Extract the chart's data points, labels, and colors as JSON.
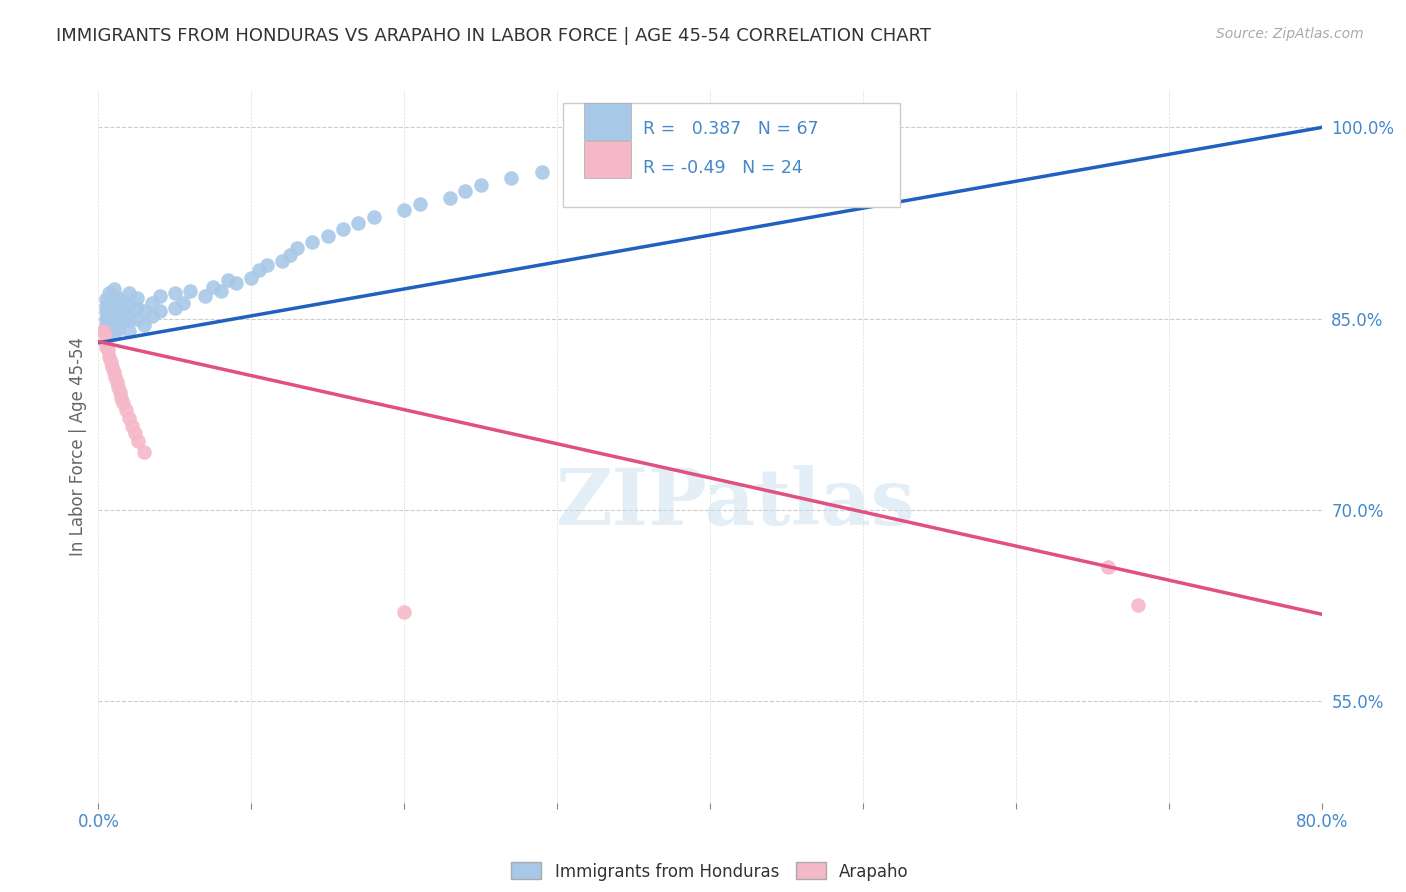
{
  "title": "IMMIGRANTS FROM HONDURAS VS ARAPAHO IN LABOR FORCE | AGE 45-54 CORRELATION CHART",
  "source": "Source: ZipAtlas.com",
  "ylabel": "In Labor Force | Age 45-54",
  "xlim": [
    0.0,
    0.8
  ],
  "ylim": [
    0.47,
    1.03
  ],
  "xtick_positions": [
    0.0,
    0.1,
    0.2,
    0.3,
    0.4,
    0.5,
    0.6,
    0.7,
    0.8
  ],
  "xtick_labels": [
    "0.0%",
    "",
    "",
    "",
    "",
    "",
    "",
    "",
    "80.0%"
  ],
  "yticks_right": [
    0.55,
    0.7,
    0.85,
    1.0
  ],
  "ytick_labels_right": [
    "55.0%",
    "70.0%",
    "85.0%",
    "100.0%"
  ],
  "r_honduras": 0.387,
  "n_honduras": 67,
  "r_arapaho": -0.49,
  "n_arapaho": 24,
  "color_honduras": "#a8c8e8",
  "color_arapaho": "#f5b8c8",
  "color_line_honduras": "#2060c0",
  "color_line_arapaho": "#e05080",
  "legend_label_honduras": "Immigrants from Honduras",
  "legend_label_arapaho": "Arapaho",
  "watermark": "ZIPatlas",
  "title_color": "#333333",
  "axis_color": "#4488cc",
  "source_color": "#aaaaaa",
  "honduras_x": [
    0.005,
    0.005,
    0.005,
    0.005,
    0.005,
    0.005,
    0.007,
    0.007,
    0.007,
    0.007,
    0.007,
    0.01,
    0.01,
    0.01,
    0.01,
    0.01,
    0.01,
    0.013,
    0.013,
    0.013,
    0.013,
    0.016,
    0.016,
    0.016,
    0.02,
    0.02,
    0.02,
    0.02,
    0.025,
    0.025,
    0.025,
    0.03,
    0.03,
    0.035,
    0.035,
    0.04,
    0.04,
    0.05,
    0.05,
    0.055,
    0.06,
    0.07,
    0.075,
    0.08,
    0.085,
    0.09,
    0.1,
    0.105,
    0.11,
    0.12,
    0.125,
    0.13,
    0.14,
    0.15,
    0.16,
    0.17,
    0.18,
    0.2,
    0.21,
    0.23,
    0.24,
    0.25,
    0.27,
    0.29,
    0.31,
    0.34,
    0.37
  ],
  "honduras_y": [
    0.84,
    0.845,
    0.85,
    0.855,
    0.86,
    0.865,
    0.84,
    0.848,
    0.855,
    0.862,
    0.87,
    0.838,
    0.843,
    0.85,
    0.857,
    0.865,
    0.873,
    0.842,
    0.85,
    0.858,
    0.866,
    0.848,
    0.856,
    0.864,
    0.84,
    0.85,
    0.86,
    0.87,
    0.85,
    0.858,
    0.866,
    0.845,
    0.856,
    0.852,
    0.862,
    0.856,
    0.868,
    0.858,
    0.87,
    0.862,
    0.872,
    0.868,
    0.875,
    0.872,
    0.88,
    0.878,
    0.882,
    0.888,
    0.892,
    0.895,
    0.9,
    0.905,
    0.91,
    0.915,
    0.92,
    0.925,
    0.93,
    0.935,
    0.94,
    0.945,
    0.95,
    0.955,
    0.96,
    0.965,
    0.97,
    0.975,
    0.98
  ],
  "arapaho_x": [
    0.003,
    0.004,
    0.005,
    0.005,
    0.006,
    0.007,
    0.008,
    0.009,
    0.01,
    0.011,
    0.012,
    0.013,
    0.014,
    0.015,
    0.016,
    0.018,
    0.02,
    0.022,
    0.024,
    0.026,
    0.03,
    0.2,
    0.66,
    0.68
  ],
  "arapaho_y": [
    0.84,
    0.838,
    0.832,
    0.828,
    0.825,
    0.82,
    0.816,
    0.812,
    0.808,
    0.804,
    0.8,
    0.796,
    0.792,
    0.788,
    0.784,
    0.778,
    0.772,
    0.766,
    0.76,
    0.754,
    0.745,
    0.62,
    0.655,
    0.625
  ],
  "blue_trend_x0": 0.0,
  "blue_trend_y0": 0.831,
  "blue_trend_x1": 0.8,
  "blue_trend_y1": 1.0,
  "pink_trend_x0": 0.0,
  "pink_trend_y0": 0.832,
  "pink_trend_x1": 0.8,
  "pink_trend_y1": 0.618
}
